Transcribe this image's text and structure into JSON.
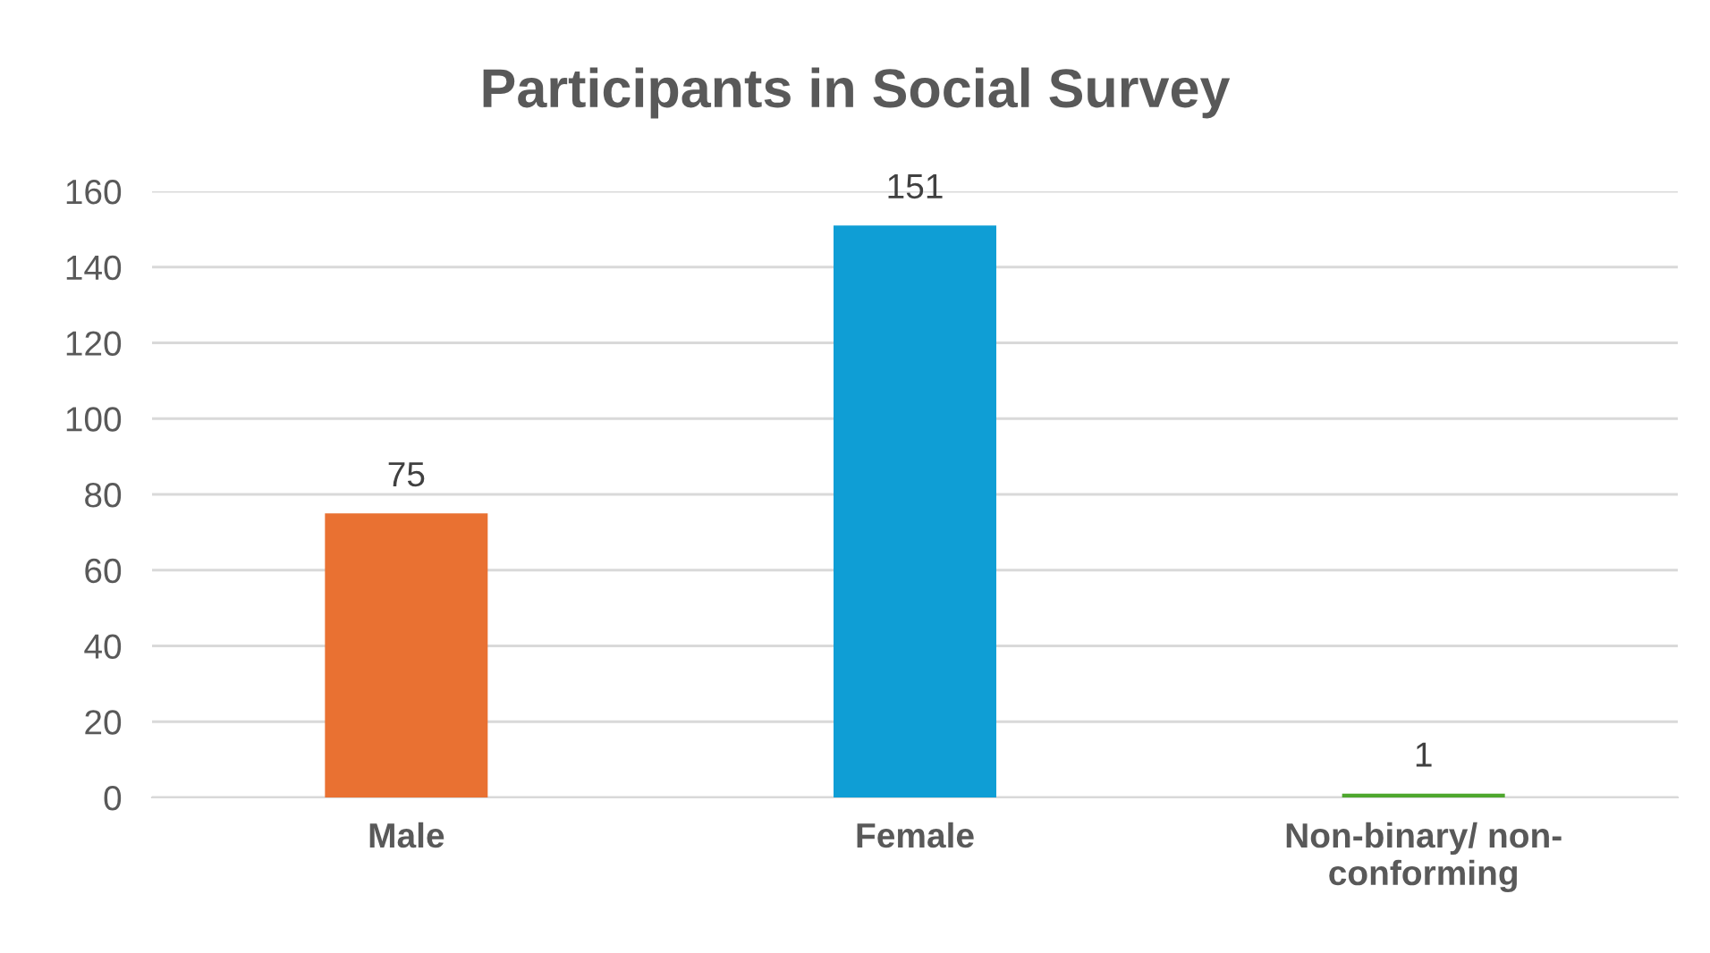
{
  "chart_data": {
    "type": "bar",
    "title": "Participants in Social Survey",
    "categories": [
      "Male",
      "Female",
      "Non-binary/ non-\nconforming"
    ],
    "values": [
      75,
      151,
      1
    ],
    "colors": [
      "#e97132",
      "#0f9ed5",
      "#4ea72e"
    ],
    "ylim": [
      0,
      160
    ],
    "yticks": [
      0,
      20,
      40,
      60,
      80,
      100,
      120,
      140,
      160
    ],
    "grid": "y",
    "data_labels": true
  }
}
